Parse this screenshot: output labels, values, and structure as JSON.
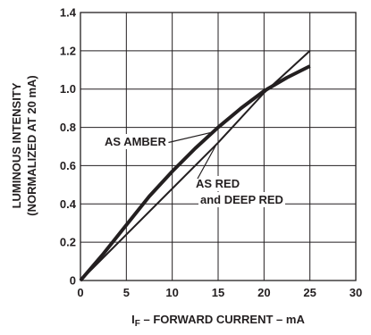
{
  "chart_data": {
    "type": "line",
    "xlabel_prefix": "I",
    "xlabel_sub": "F",
    "xlabel_rest": " – FORWARD CURRENT – mA",
    "ylabel_line1": "LUMINOUS INTENSITY",
    "ylabel_line2": "(NORMALIZED AT 20 mA)",
    "xlim": [
      0,
      30
    ],
    "ylim": [
      0,
      1.4
    ],
    "x_ticks": [
      "0",
      "5",
      "10",
      "15",
      "20",
      "25",
      "30"
    ],
    "y_ticks": [
      "0",
      "0.2",
      "0.4",
      "0.6",
      "0.8",
      "1.0",
      "1.2",
      "1.4"
    ],
    "grid": true,
    "series": [
      {
        "name": "AS AMBER",
        "x": [
          0,
          2.5,
          5,
          7.5,
          10,
          12.5,
          15,
          17.5,
          20,
          22.5,
          25
        ],
        "y": [
          0,
          0.14,
          0.29,
          0.44,
          0.57,
          0.69,
          0.8,
          0.9,
          0.99,
          1.06,
          1.12
        ]
      },
      {
        "name": "AS RED and DEEP RED",
        "x": [
          0,
          5,
          10,
          15,
          20,
          25
        ],
        "y": [
          0,
          0.24,
          0.48,
          0.72,
          0.98,
          1.2
        ]
      }
    ],
    "annotations": [
      {
        "text": "AS AMBER"
      },
      {
        "text": "AS RED"
      },
      {
        "text": "and DEEP RED"
      }
    ]
  }
}
